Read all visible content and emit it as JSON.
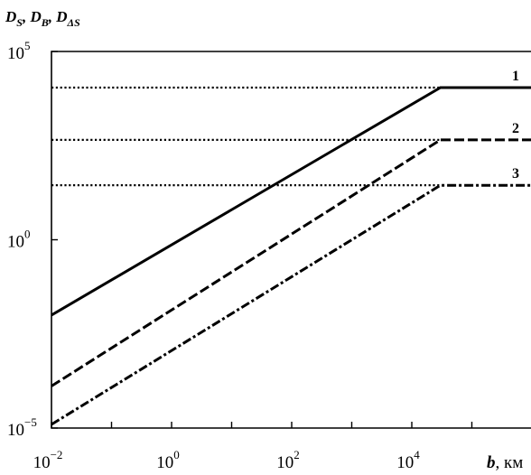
{
  "chart_data": {
    "type": "line",
    "scale": {
      "x": "log",
      "y": "log"
    },
    "xlim": [
      0.01,
      10000000
    ],
    "ylim": [
      1e-05,
      100000
    ],
    "ylabel_parts": [
      {
        "var": "D",
        "sub": "S",
        "sep": ", "
      },
      {
        "var": "D",
        "sub": "B",
        "sep": ", "
      },
      {
        "var": "D",
        "sub": "ΔS",
        "sep": ""
      }
    ],
    "xlabel": {
      "var": "b",
      "unit": ", км"
    },
    "x_ticks": [
      {
        "base": "10",
        "exp": "−2",
        "value": 0.01
      },
      {
        "base": "10",
        "exp": "0",
        "value": 1
      },
      {
        "base": "10",
        "exp": "2",
        "value": 100
      },
      {
        "base": "10",
        "exp": "4",
        "value": 10000
      }
    ],
    "y_ticks": [
      {
        "base": "10",
        "exp": "−5",
        "value": 1e-05
      },
      {
        "base": "10",
        "exp": "0",
        "value": 1
      },
      {
        "base": "10",
        "exp": "5",
        "value": 100000
      }
    ],
    "series": [
      {
        "name": "1",
        "style": "solid",
        "points": [
          [
            0.01,
            0.01
          ],
          [
            30000,
            11000
          ],
          [
            10000000,
            11000
          ]
        ],
        "limit": 11000
      },
      {
        "name": "2",
        "style": "dashed",
        "points": [
          [
            0.01,
            0.00013
          ],
          [
            30000,
            450
          ],
          [
            10000000,
            450
          ]
        ],
        "limit": 450
      },
      {
        "name": "3",
        "style": "dashdot",
        "points": [
          [
            0.01,
            1.25e-05
          ],
          [
            30000,
            28
          ],
          [
            10000000,
            28
          ]
        ],
        "limit": 28
      }
    ],
    "limit_style": "dotted",
    "grid": false,
    "legend": "inline labels at right"
  }
}
